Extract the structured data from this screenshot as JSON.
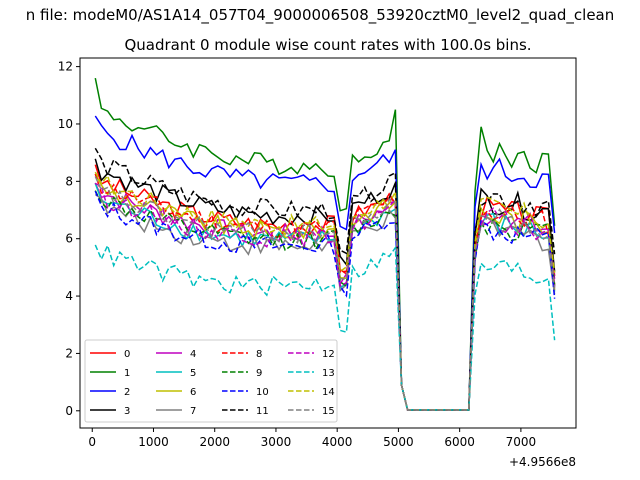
{
  "chart_data": {
    "type": "line",
    "suptitle": "n file: modeM0/AS1A14_057T04_9000006508_53920cztM0_level2_quad_clean",
    "title": "Quadrant 0 module wise count rates with 100.0s bins.",
    "xlabel": "",
    "ylabel": "",
    "x_offset_label": "+4.9566e8",
    "xlim": [
      -200,
      7900
    ],
    "ylim": [
      -0.6,
      12.3
    ],
    "x_ticks": [
      0,
      1000,
      2000,
      3000,
      4000,
      5000,
      6000,
      7000
    ],
    "y_ticks": [
      0,
      2,
      4,
      6,
      8,
      10,
      12
    ],
    "legend_position": "lower-left",
    "legend_columns": 4,
    "grid": false,
    "gap_start": 5150,
    "gap_end": 6150,
    "series": [
      {
        "name": "0",
        "color": "#ff0000",
        "dash": false,
        "base": 6.5
      },
      {
        "name": "1",
        "color": "#008000",
        "dash": false,
        "base": 8.5
      },
      {
        "name": "2",
        "color": "#0000ff",
        "dash": false,
        "base": 7.9
      },
      {
        "name": "3",
        "color": "#000000",
        "dash": false,
        "base": 6.8
      },
      {
        "name": "4",
        "color": "#bf00bf",
        "dash": false,
        "base": 6.2
      },
      {
        "name": "5",
        "color": "#00bfbf",
        "dash": false,
        "base": 6.0
      },
      {
        "name": "6",
        "color": "#bfbf00",
        "dash": false,
        "base": 6.3
      },
      {
        "name": "7",
        "color": "#808080",
        "dash": false,
        "base": 5.8
      },
      {
        "name": "8",
        "color": "#ff0000",
        "dash": true,
        "base": 6.4
      },
      {
        "name": "9",
        "color": "#008000",
        "dash": true,
        "base": 6.0
      },
      {
        "name": "10",
        "color": "#0000ff",
        "dash": true,
        "base": 5.8
      },
      {
        "name": "11",
        "color": "#000000",
        "dash": true,
        "base": 7.0
      },
      {
        "name": "12",
        "color": "#bf00bf",
        "dash": true,
        "base": 6.1
      },
      {
        "name": "13",
        "color": "#00bfbf",
        "dash": true,
        "base": 4.5
      },
      {
        "name": "14",
        "color": "#bfbf00",
        "dash": true,
        "base": 6.5
      },
      {
        "name": "15",
        "color": "#808080",
        "dash": true,
        "base": 6.2
      }
    ]
  }
}
